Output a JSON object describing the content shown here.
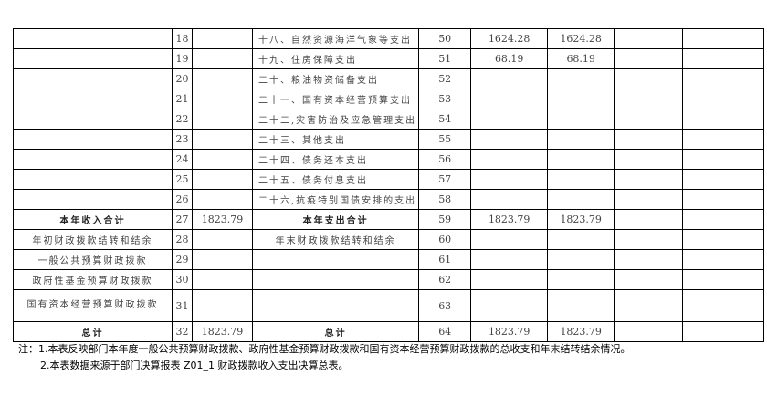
{
  "rows": [
    {
      "inc_label": "",
      "inc_no": "18",
      "inc_amt": "",
      "exp_label": "十八、自然资源海洋气象等支出",
      "exp_no": "50",
      "c1": "1624.28",
      "c2": "1624.28",
      "c3": "",
      "c4": ""
    },
    {
      "inc_label": "",
      "inc_no": "19",
      "inc_amt": "",
      "exp_label": "十九、住房保障支出",
      "exp_no": "51",
      "c1": "68.19",
      "c2": "68.19",
      "c3": "",
      "c4": ""
    },
    {
      "inc_label": "",
      "inc_no": "20",
      "inc_amt": "",
      "exp_label": "二十、粮油物资储备支出",
      "exp_no": "52",
      "c1": "",
      "c2": "",
      "c3": "",
      "c4": ""
    },
    {
      "inc_label": "",
      "inc_no": "21",
      "inc_amt": "",
      "exp_label": "二十一、国有资本经营预算支出",
      "exp_no": "53",
      "c1": "",
      "c2": "",
      "c3": "",
      "c4": ""
    },
    {
      "inc_label": "",
      "inc_no": "22",
      "inc_amt": "",
      "exp_label": "二十二,灾害防治及应急管理支出",
      "exp_no": "54",
      "c1": "",
      "c2": "",
      "c3": "",
      "c4": ""
    },
    {
      "inc_label": "",
      "inc_no": "23",
      "inc_amt": "",
      "exp_label": "二十三、其他支出",
      "exp_no": "55",
      "c1": "",
      "c2": "",
      "c3": "",
      "c4": ""
    },
    {
      "inc_label": "",
      "inc_no": "24",
      "inc_amt": "",
      "exp_label": "二十四、债务还本支出",
      "exp_no": "56",
      "c1": "",
      "c2": "",
      "c3": "",
      "c4": ""
    },
    {
      "inc_label": "",
      "inc_no": "25",
      "inc_amt": "",
      "exp_label": "二十五、债务付息支出",
      "exp_no": "57",
      "c1": "",
      "c2": "",
      "c3": "",
      "c4": ""
    },
    {
      "inc_label": "",
      "inc_no": "26",
      "inc_amt": "",
      "exp_label": "二十六,抗疫特别国债安排的支出",
      "exp_no": "58",
      "c1": "",
      "c2": "",
      "c3": "",
      "c4": ""
    },
    {
      "inc_label": "本年收入合计",
      "inc_no": "27",
      "inc_amt": "1823.79",
      "exp_label": "本年支出合计",
      "exp_no": "59",
      "c1": "1823.79",
      "c2": "1823.79",
      "c3": "",
      "c4": ""
    },
    {
      "inc_label": "年初财政拨款结转和结余",
      "inc_no": "28",
      "inc_amt": "",
      "exp_label": "年末财政拨款结转和结余",
      "exp_no": "60",
      "c1": "",
      "c2": "",
      "c3": "",
      "c4": ""
    },
    {
      "inc_label": "一般公共预算财政拨款",
      "inc_no": "29",
      "inc_amt": "",
      "exp_label": "",
      "exp_no": "61",
      "c1": "",
      "c2": "",
      "c3": "",
      "c4": ""
    },
    {
      "inc_label": "政府性基金预算财政拨款",
      "inc_no": "30",
      "inc_amt": "",
      "exp_label": "",
      "exp_no": "62",
      "c1": "",
      "c2": "",
      "c3": "",
      "c4": ""
    },
    {
      "inc_label": "国有资本经营预算财政拨款",
      "inc_no": "31",
      "inc_amt": "",
      "exp_label": "",
      "exp_no": "63",
      "c1": "",
      "c2": "",
      "c3": "",
      "c4": ""
    },
    {
      "inc_label": "总计",
      "inc_no": "32",
      "inc_amt": "1823.79",
      "exp_label": "总计",
      "exp_no": "64",
      "c1": "1823.79",
      "c2": "1823.79",
      "c3": "",
      "c4": ""
    }
  ],
  "notes": {
    "line1": "注：1.本表反映部门本年度一般公共预算财政拨款、政府性基金预算财政拨款和国有资本经营预算财政拨款的总收支和年末结转结余情况。",
    "line2": "2.本表数据来源于部门决算报表 Z01_1 财政拨款收入支出决算总表。"
  }
}
